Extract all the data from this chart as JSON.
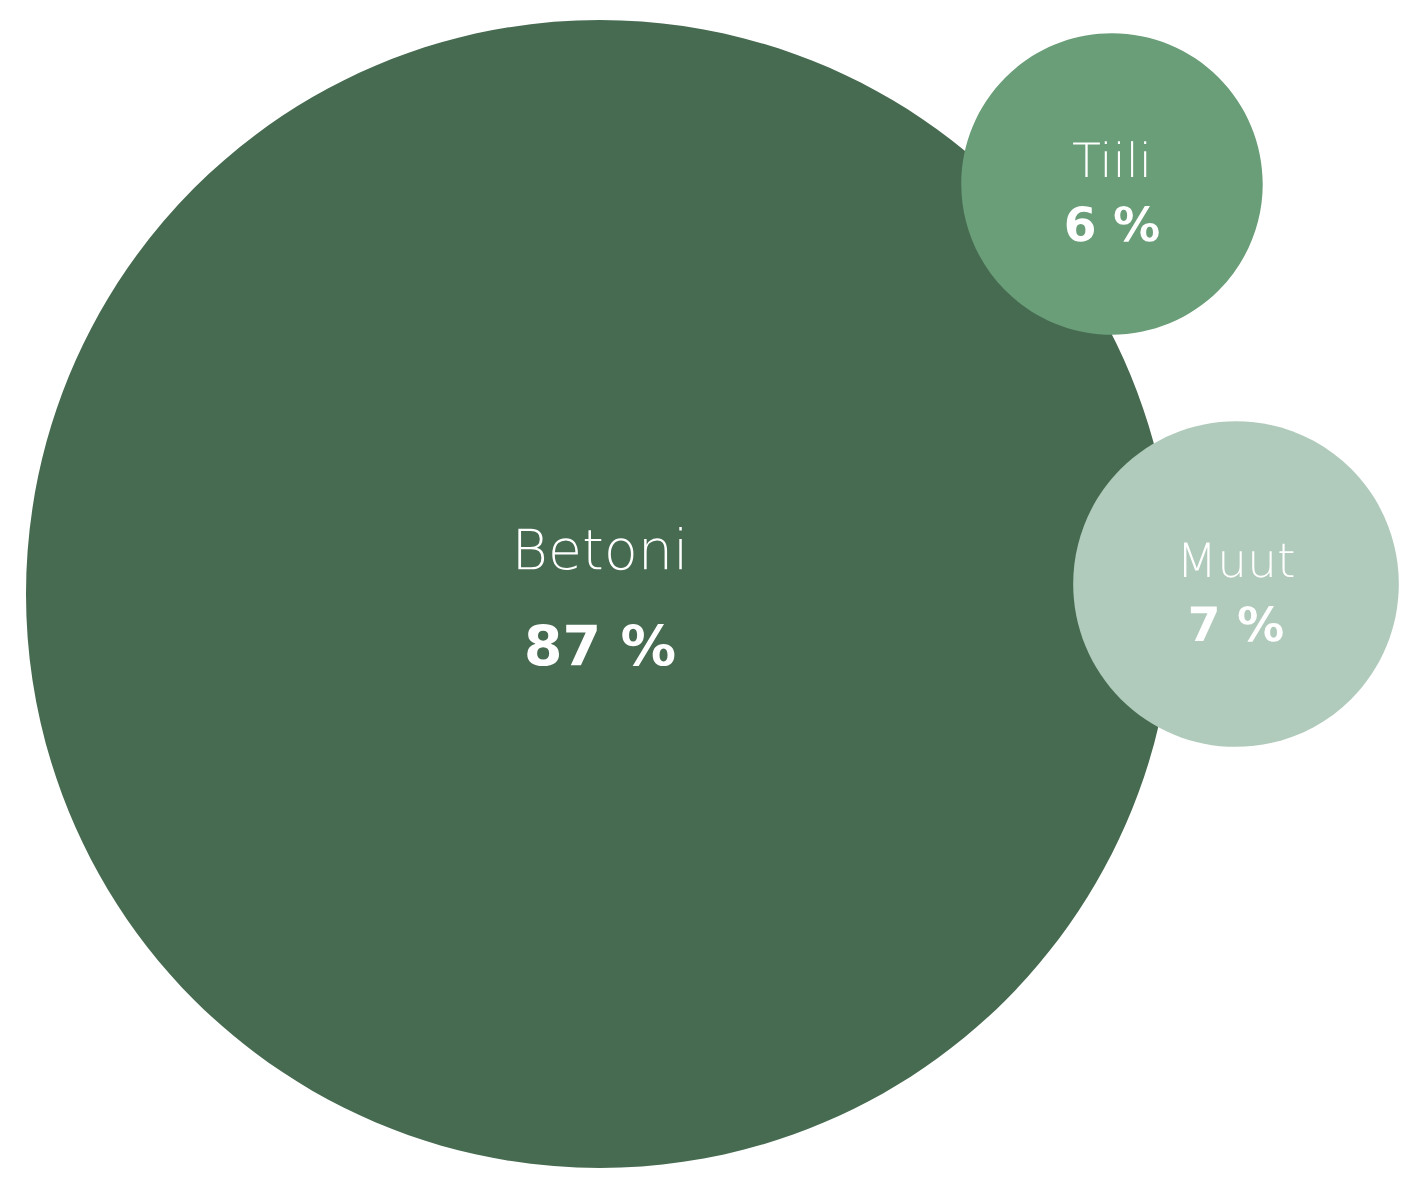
{
  "chart_data": {
    "type": "other",
    "categories": [
      "Betoni",
      "Tiili",
      "Muut"
    ],
    "values": [
      87,
      6,
      7
    ],
    "value_labels": [
      "87 %",
      "6 %",
      "7 %"
    ],
    "colors": [
      "#476b51",
      "#6a9e78",
      "#b0cbbb"
    ]
  }
}
